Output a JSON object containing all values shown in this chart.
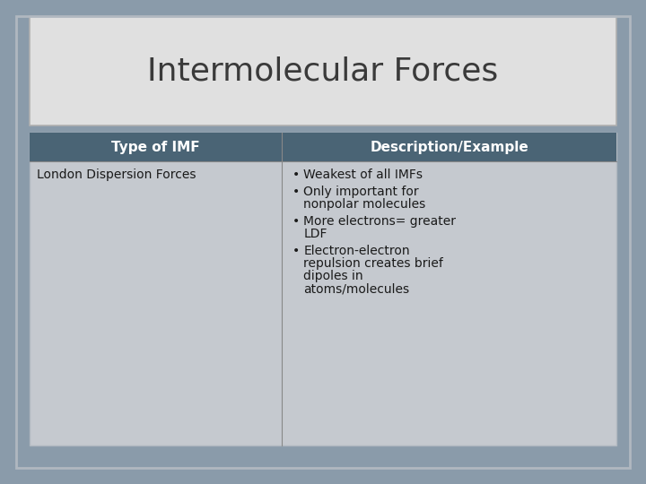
{
  "title": "Intermolecular Forces",
  "title_fontsize": 26,
  "title_color": "#3a3a3a",
  "background_color": "#8a9baa",
  "title_bg_color": "#e0e0e0",
  "table_bg_color": "#c5c9cf",
  "header_bg_color": "#4a6475",
  "header_text_color": "#ffffff",
  "header_col1": "Type of IMF",
  "header_col2": "Description/Example",
  "row1_col1": "London Dispersion Forces",
  "bullet_points": [
    "Weakest of all IMFs",
    "Only important for\nnonpolar molecules",
    "More electrons= greater\nLDF",
    "Electron-electron\nrepulsion creates brief\ndipoles in\natoms/molecules"
  ],
  "cell_text_color": "#1a1a1a",
  "header_fontsize": 11,
  "cell_fontsize": 10,
  "border_color": "#b0b8c0",
  "divider_color": "#888888",
  "title_border_color": "#b0b0b0",
  "slide_bg_border": "#8a9baa"
}
